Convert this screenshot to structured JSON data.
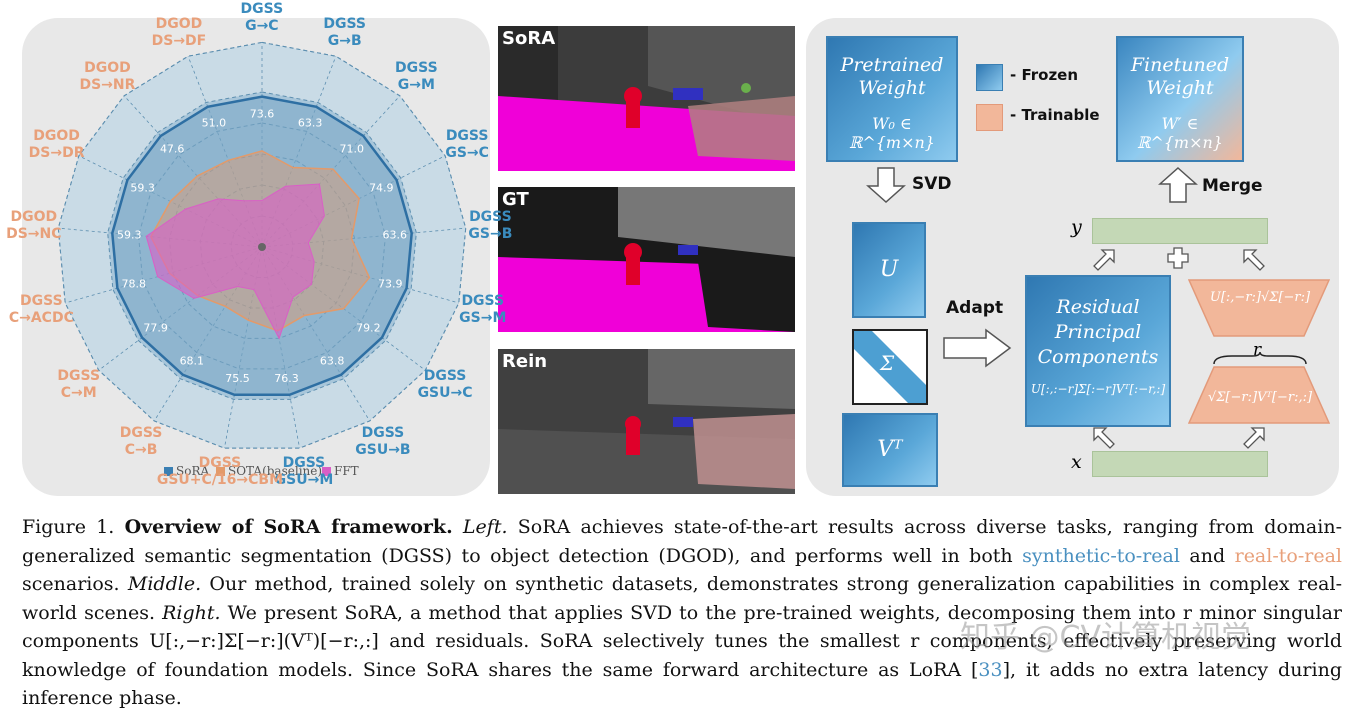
{
  "left": {
    "axes": [
      {
        "label": "DGSS\nG→C",
        "value": "73.6",
        "color": "blue"
      },
      {
        "label": "DGSS\nG→B",
        "value": "63.3",
        "color": "blue"
      },
      {
        "label": "DGSS\nG→M",
        "value": "71.0",
        "color": "blue"
      },
      {
        "label": "DGSS\nGS→C",
        "value": "74.9",
        "color": "blue"
      },
      {
        "label": "DGSS\nGS→B",
        "value": "63.6",
        "color": "blue"
      },
      {
        "label": "DGSS\nGS→M",
        "value": "73.9",
        "color": "blue"
      },
      {
        "label": "DGSS\nGSU→C",
        "value": "79.2",
        "color": "blue"
      },
      {
        "label": "DGSS\nGSU→B",
        "value": "63.8",
        "color": "blue"
      },
      {
        "label": "DGSS\nGSU→M",
        "value": "76.3",
        "color": "blue"
      },
      {
        "label": "DGSS\nGSU+C/16→CBM",
        "value": "75.5",
        "color": "orange"
      },
      {
        "label": "DGSS\nC→B",
        "value": "68.1",
        "color": "orange"
      },
      {
        "label": "DGSS\nC→M",
        "value": "77.9",
        "color": "orange"
      },
      {
        "label": "DGSS\nC→ACDC",
        "value": "78.8",
        "color": "orange"
      },
      {
        "label": "DGOD\nDS→NC",
        "value": "59.3",
        "color": "orange"
      },
      {
        "label": "DGOD\nDS→DR",
        "value": "59.3",
        "color": "orange"
      },
      {
        "label": "DGOD\nDS→NR",
        "value": "47.6",
        "color": "orange"
      },
      {
        "label": "DGOD\nDS→DF",
        "value": "51.0",
        "color": "orange"
      }
    ],
    "legend": [
      {
        "name": "SoRA",
        "color": "#3a7fb3"
      },
      {
        "name": "SOTA(baseline)",
        "color": "#e39a6a"
      },
      {
        "name": "FFT",
        "color": "#d95fc6"
      }
    ],
    "colors": {
      "sora": "#2e6fa3",
      "sota": "#e39a6a",
      "fft": "#d95fc6",
      "panel": "#e8e8e8"
    }
  },
  "middle": {
    "scenes": [
      {
        "label": "SoRA"
      },
      {
        "label": "GT"
      },
      {
        "label": "Rein"
      }
    ]
  },
  "right": {
    "pretrained": {
      "title1": "Pretrained",
      "title2": "Weight",
      "formula": "W₀ ∈ ℝ^{m×n}"
    },
    "finetuned": {
      "title1": "Finetuned",
      "title2": "Weight",
      "formula": "W′ ∈ ℝ^{m×n}"
    },
    "legend_frozen": "- Frozen",
    "legend_trainable": "- Trainable",
    "svd_label": "SVD",
    "merge_label": "Merge",
    "adapt_label": "Adapt",
    "u_label": "U",
    "sigma_label": "Σ",
    "vt_label": "Vᵀ",
    "residual": {
      "l1": "Residual",
      "l2": "Principal",
      "l3": "Components",
      "formula": "U[:,:−r]Σ[:−r]Vᵀ[:−r,:]"
    },
    "top_orange": "U[:,−r:]√Σ[−r:]",
    "bottom_orange": "√Σ[−r:]Vᵀ[−r:,:]",
    "r_label": "r",
    "y_label": "y",
    "x_label": "x"
  },
  "caption": {
    "fig": "Figure 1.",
    "title": "Overview of SoRA framework.",
    "left_label": "Left.",
    "part1": " SoRA achieves state-of-the-art results across diverse tasks, ranging from domain-generalized semantic segmentation (DGSS) to object detection (DGOD), and performs well in both ",
    "syn": "synthetic-to-real",
    "and": " and ",
    "real": "real-to-real",
    "part2": " scenarios. ",
    "middle_label": "Middle.",
    "part3": " Our method, trained solely on synthetic datasets, demonstrates strong generalization capabilities in complex real-world scenes. ",
    "right_label": "Right.",
    "part4": " We present SoRA, a method that applies SVD to the pre-trained weights, decomposing them into r minor singular components U[:,−r:]Σ[−r:](Vᵀ)[−r:,:] and residuals. SoRA selectively tunes the smallest r components, effectively preserving world knowledge of foundation models. Since SoRA shares the same forward architecture as LoRA [",
    "ref": "33",
    "part5": "], it adds no extra latency during inference phase."
  },
  "watermark": "知乎 @CV计算机视觉"
}
